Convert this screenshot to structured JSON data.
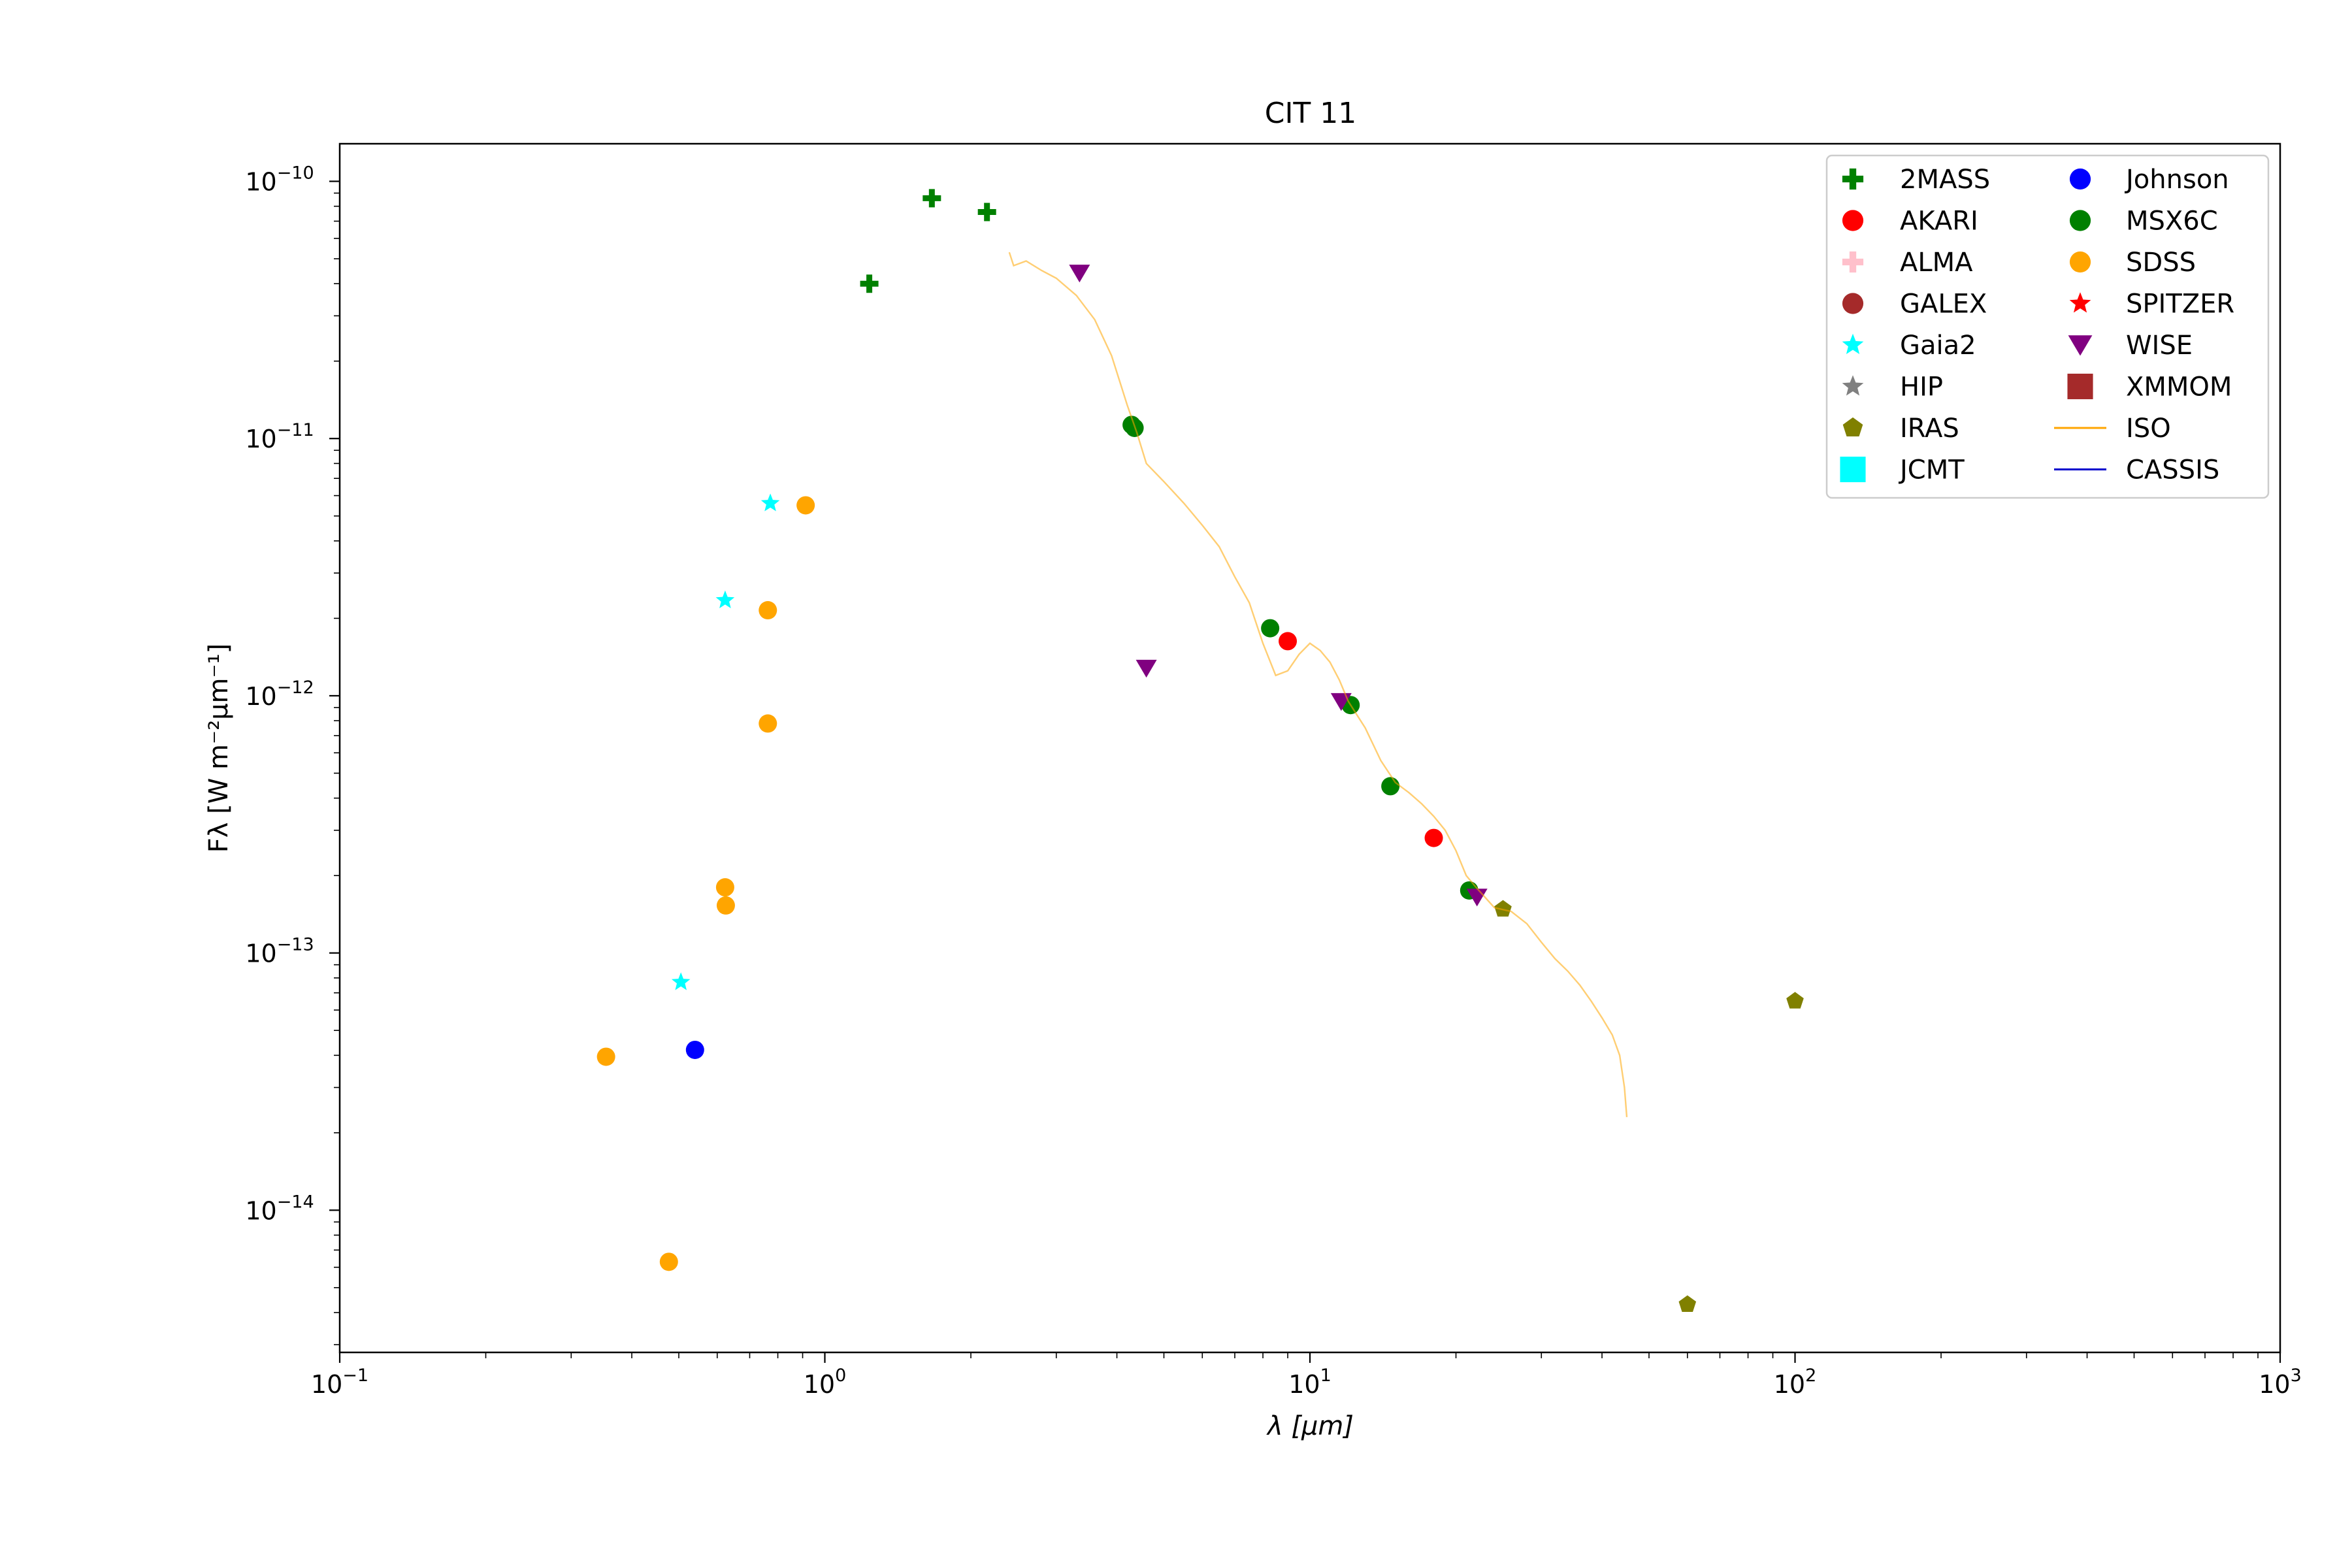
{
  "chart_data": {
    "type": "scatter",
    "title": "CIT 11",
    "xlabel": "λ [μm]",
    "ylabel": "Fλ [W m⁻²μm⁻¹]",
    "x_scale": "log",
    "y_scale": "log",
    "xlim": [
      0.1,
      1000
    ],
    "ylim": [
      2.8e-15,
      1.4e-10
    ],
    "grid": false,
    "legend_position": "top-right",
    "x_ticks": [
      {
        "base": "10",
        "exp": "−1",
        "value": 0.1
      },
      {
        "base": "10",
        "exp": "0",
        "value": 1
      },
      {
        "base": "10",
        "exp": "1",
        "value": 10
      },
      {
        "base": "10",
        "exp": "2",
        "value": 100
      },
      {
        "base": "10",
        "exp": "3",
        "value": 1000
      }
    ],
    "y_ticks": [
      {
        "base": "10",
        "exp": "−14",
        "value": 1e-14
      },
      {
        "base": "10",
        "exp": "−13",
        "value": 1e-13
      },
      {
        "base": "10",
        "exp": "−12",
        "value": 1e-12
      },
      {
        "base": "10",
        "exp": "−11",
        "value": 1e-11
      },
      {
        "base": "10",
        "exp": "−10",
        "value": 1e-10
      }
    ],
    "series": [
      {
        "name": "2MASS",
        "marker": "plus",
        "color": "#008000",
        "points": [
          [
            1.235,
            4e-11
          ],
          [
            1.662,
            8.6e-11
          ],
          [
            2.159,
            7.6e-11
          ]
        ]
      },
      {
        "name": "AKARI",
        "marker": "circle",
        "color": "#ff0000",
        "points": [
          [
            9.0,
            1.63e-12
          ],
          [
            18.0,
            2.8e-13
          ]
        ]
      },
      {
        "name": "ALMA",
        "marker": "plus",
        "color": "#ffc0cb",
        "points": []
      },
      {
        "name": "GALEX",
        "marker": "circle",
        "color": "#a52a2a",
        "points": []
      },
      {
        "name": "Gaia2",
        "marker": "star",
        "color": "#00ffff",
        "points": [
          [
            0.505,
            7.7e-14
          ],
          [
            0.623,
            2.35e-12
          ],
          [
            0.772,
            5.6e-12
          ]
        ]
      },
      {
        "name": "HIP",
        "marker": "star",
        "color": "#808080",
        "points": []
      },
      {
        "name": "IRAS",
        "marker": "pentagon",
        "color": "#808000",
        "points": [
          [
            25.0,
            1.48e-13
          ],
          [
            60.0,
            4.3e-15
          ],
          [
            100.0,
            6.5e-14
          ]
        ]
      },
      {
        "name": "JCMT",
        "marker": "square",
        "color": "#00ffff",
        "points": []
      },
      {
        "name": "Johnson",
        "marker": "circle",
        "color": "#0000ff",
        "points": [
          [
            0.54,
            4.2e-14
          ]
        ]
      },
      {
        "name": "MSX6C",
        "marker": "circle",
        "color": "#008000",
        "points": [
          [
            4.29,
            1.13e-11
          ],
          [
            4.35,
            1.1e-11
          ],
          [
            8.28,
            1.83e-12
          ],
          [
            12.13,
            9.2e-13
          ],
          [
            14.65,
            4.45e-13
          ],
          [
            21.3,
            1.75e-13
          ]
        ]
      },
      {
        "name": "SDSS",
        "marker": "circle",
        "color": "#ffa500",
        "points": [
          [
            0.354,
            3.95e-14
          ],
          [
            0.477,
            6.3e-15
          ],
          [
            0.623,
            1.8e-13
          ],
          [
            0.625,
            1.53e-13
          ],
          [
            0.763,
            2.15e-12
          ],
          [
            0.763,
            7.8e-13
          ],
          [
            0.913,
            5.5e-12
          ]
        ]
      },
      {
        "name": "SPITZER",
        "marker": "star",
        "color": "#ff0000",
        "points": []
      },
      {
        "name": "WISE",
        "marker": "triangle-down",
        "color": "#800080",
        "points": [
          [
            3.35,
            4.4e-11
          ],
          [
            4.6,
            1.28e-12
          ],
          [
            11.6,
            9.5e-13
          ],
          [
            22.1,
            1.65e-13
          ]
        ]
      },
      {
        "name": "XMMOM",
        "marker": "square",
        "color": "#a52a2a",
        "points": []
      },
      {
        "name": "ISO",
        "marker": "line",
        "color": "#ffa500",
        "points": [
          [
            2.4,
            5.3e-11
          ],
          [
            2.45,
            4.7e-11
          ],
          [
            2.6,
            4.9e-11
          ],
          [
            2.8,
            4.5e-11
          ],
          [
            3.0,
            4.2e-11
          ],
          [
            3.3,
            3.6e-11
          ],
          [
            3.6,
            2.9e-11
          ],
          [
            3.9,
            2.1e-11
          ],
          [
            4.2,
            1.35e-11
          ],
          [
            4.4,
            1.05e-11
          ],
          [
            4.6,
            8e-12
          ],
          [
            5.0,
            6.8e-12
          ],
          [
            5.5,
            5.6e-12
          ],
          [
            6.0,
            4.6e-12
          ],
          [
            6.5,
            3.8e-12
          ],
          [
            7.0,
            2.9e-12
          ],
          [
            7.5,
            2.3e-12
          ],
          [
            8.0,
            1.6e-12
          ],
          [
            8.5,
            1.2e-12
          ],
          [
            9.0,
            1.25e-12
          ],
          [
            9.5,
            1.45e-12
          ],
          [
            10.0,
            1.6e-12
          ],
          [
            10.5,
            1.5e-12
          ],
          [
            11.0,
            1.35e-12
          ],
          [
            11.5,
            1.15e-12
          ],
          [
            12.0,
            9.5e-13
          ],
          [
            13.0,
            7.5e-13
          ],
          [
            14.0,
            5.6e-13
          ],
          [
            15.0,
            4.6e-13
          ],
          [
            16.0,
            4.2e-13
          ],
          [
            17.0,
            3.8e-13
          ],
          [
            18.0,
            3.4e-13
          ],
          [
            19.0,
            3e-13
          ],
          [
            20.0,
            2.5e-13
          ],
          [
            21.0,
            2e-13
          ],
          [
            22.0,
            1.8e-13
          ],
          [
            24.0,
            1.5e-13
          ],
          [
            26.0,
            1.45e-13
          ],
          [
            28.0,
            1.3e-13
          ],
          [
            30.0,
            1.1e-13
          ],
          [
            32.0,
            9.5e-14
          ],
          [
            34.0,
            8.5e-14
          ],
          [
            36.0,
            7.5e-14
          ],
          [
            38.0,
            6.5e-14
          ],
          [
            40.0,
            5.6e-14
          ],
          [
            42.0,
            4.8e-14
          ],
          [
            43.5,
            4e-14
          ],
          [
            44.5,
            3e-14
          ],
          [
            45.0,
            2.3e-14
          ]
        ]
      },
      {
        "name": "CASSIS",
        "marker": "line",
        "color": "#0000cd",
        "points": []
      }
    ]
  }
}
